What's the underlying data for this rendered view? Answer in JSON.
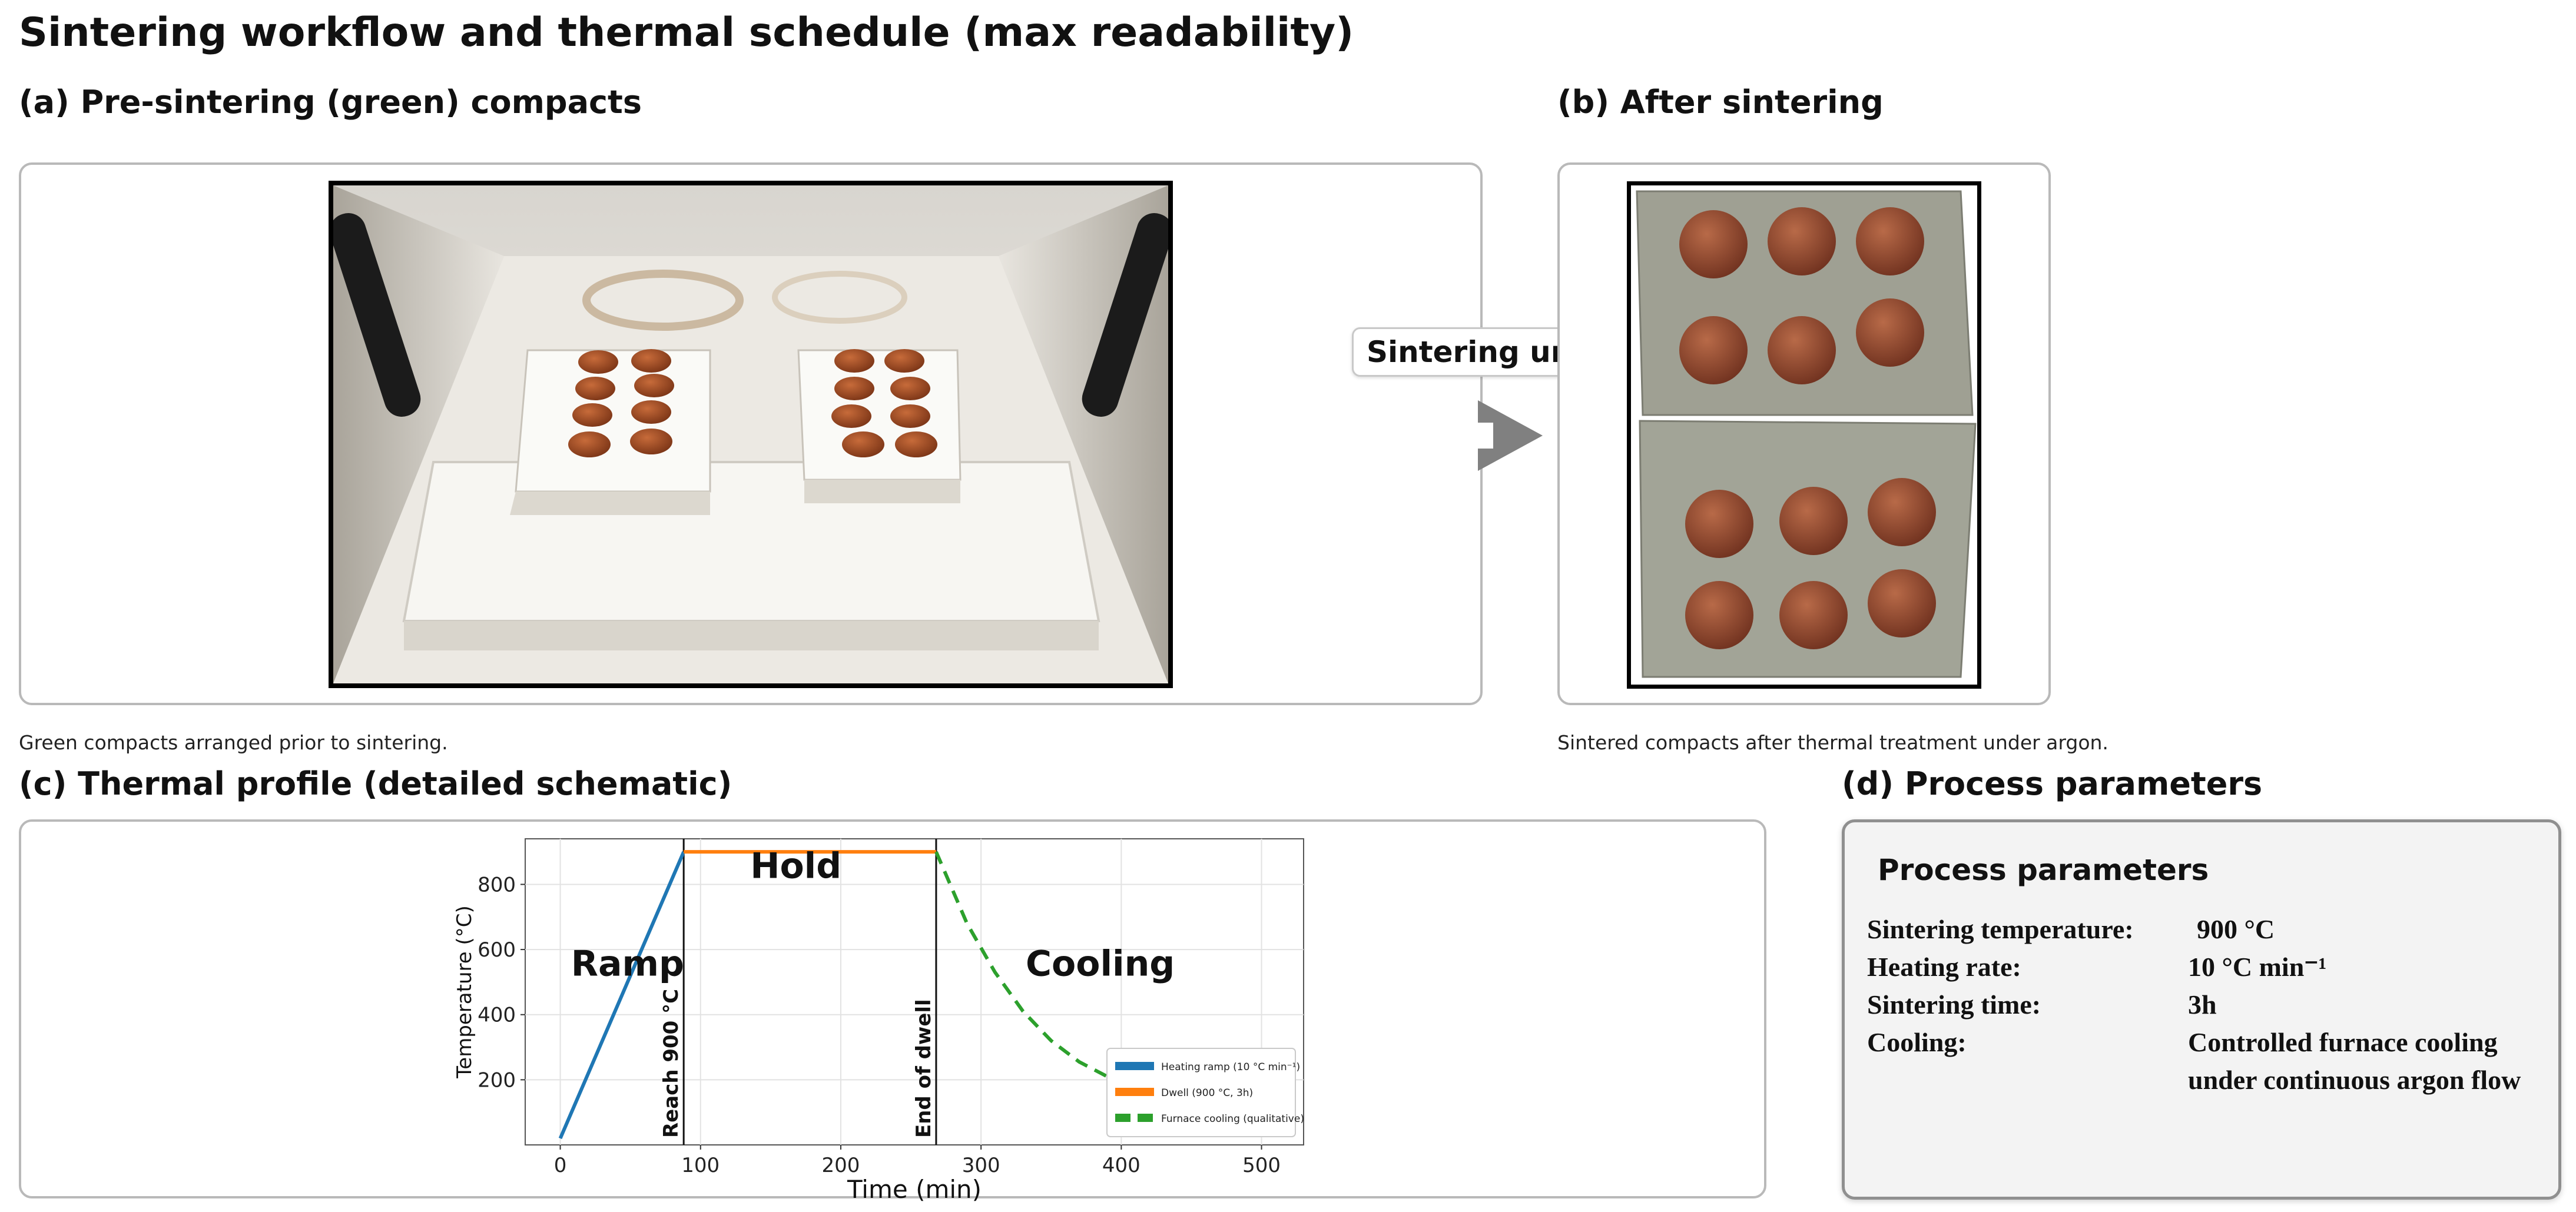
{
  "page": {
    "title": "Sintering workflow and thermal schedule (max readability)"
  },
  "panel_a": {
    "heading": "(a) Pre-sintering (green) compacts",
    "caption": "Green compacts arranged prior to sintering.",
    "image_desc": "furnace-interior-photo"
  },
  "transition": {
    "label": "Sintering under Ar",
    "icon": "arrow-right-icon"
  },
  "panel_b": {
    "heading": "(b) After sintering",
    "caption": "Sintered compacts after thermal treatment under argon.",
    "image_desc": "sintered-compacts-photo"
  },
  "panel_c": {
    "heading": "(c) Thermal profile (detailed schematic)"
  },
  "panel_d": {
    "heading": "(d) Process parameters",
    "box_title": "Process parameters",
    "rows": [
      {
        "key": "Sintering temperature:",
        "value": "900 °C"
      },
      {
        "key": "Heating rate:",
        "value": "10 °C min⁻¹"
      },
      {
        "key": "Sintering time:",
        "value": "3h"
      },
      {
        "key": "Cooling:",
        "value": "Controlled furnace cooling under continuous argon flow"
      }
    ]
  },
  "colors": {
    "ramp": "#1f77b4",
    "dwell": "#ff7f0e",
    "cooling": "#2ca02c",
    "panel_border": "#b9b9b9"
  },
  "chart_data": {
    "type": "line",
    "title": "",
    "xlabel": "Time (min)",
    "ylabel": "Temperature (°C)",
    "xlim": [
      -25,
      530
    ],
    "ylim": [
      0,
      940
    ],
    "xticks": [
      0,
      100,
      200,
      300,
      400,
      500
    ],
    "yticks": [
      200,
      400,
      600,
      800
    ],
    "grid": true,
    "legend_position": "lower right",
    "series": [
      {
        "name": "Heating ramp (10 °C min⁻¹)",
        "style": "solid",
        "x": [
          0,
          88
        ],
        "y": [
          20,
          900
        ]
      },
      {
        "name": "Dwell (900 °C, 3h)",
        "style": "solid",
        "x": [
          88,
          268
        ],
        "y": [
          900,
          900
        ]
      },
      {
        "name": "Furnace cooling (qualitative)",
        "style": "dashed",
        "x": [
          268,
          290,
          310,
          330,
          350,
          370,
          390,
          400
        ],
        "y": [
          900,
          680,
          530,
          410,
          320,
          255,
          210,
          195
        ]
      }
    ],
    "vlines": [
      {
        "x": 88,
        "label": "Reach 900 °C"
      },
      {
        "x": 268,
        "label": "End of dwell"
      }
    ],
    "annotations": [
      {
        "text": "Ramp",
        "x": 48,
        "y": 520
      },
      {
        "text": "Hold",
        "x": 168,
        "y": 820
      },
      {
        "text": "Cooling",
        "x": 385,
        "y": 520
      }
    ]
  }
}
